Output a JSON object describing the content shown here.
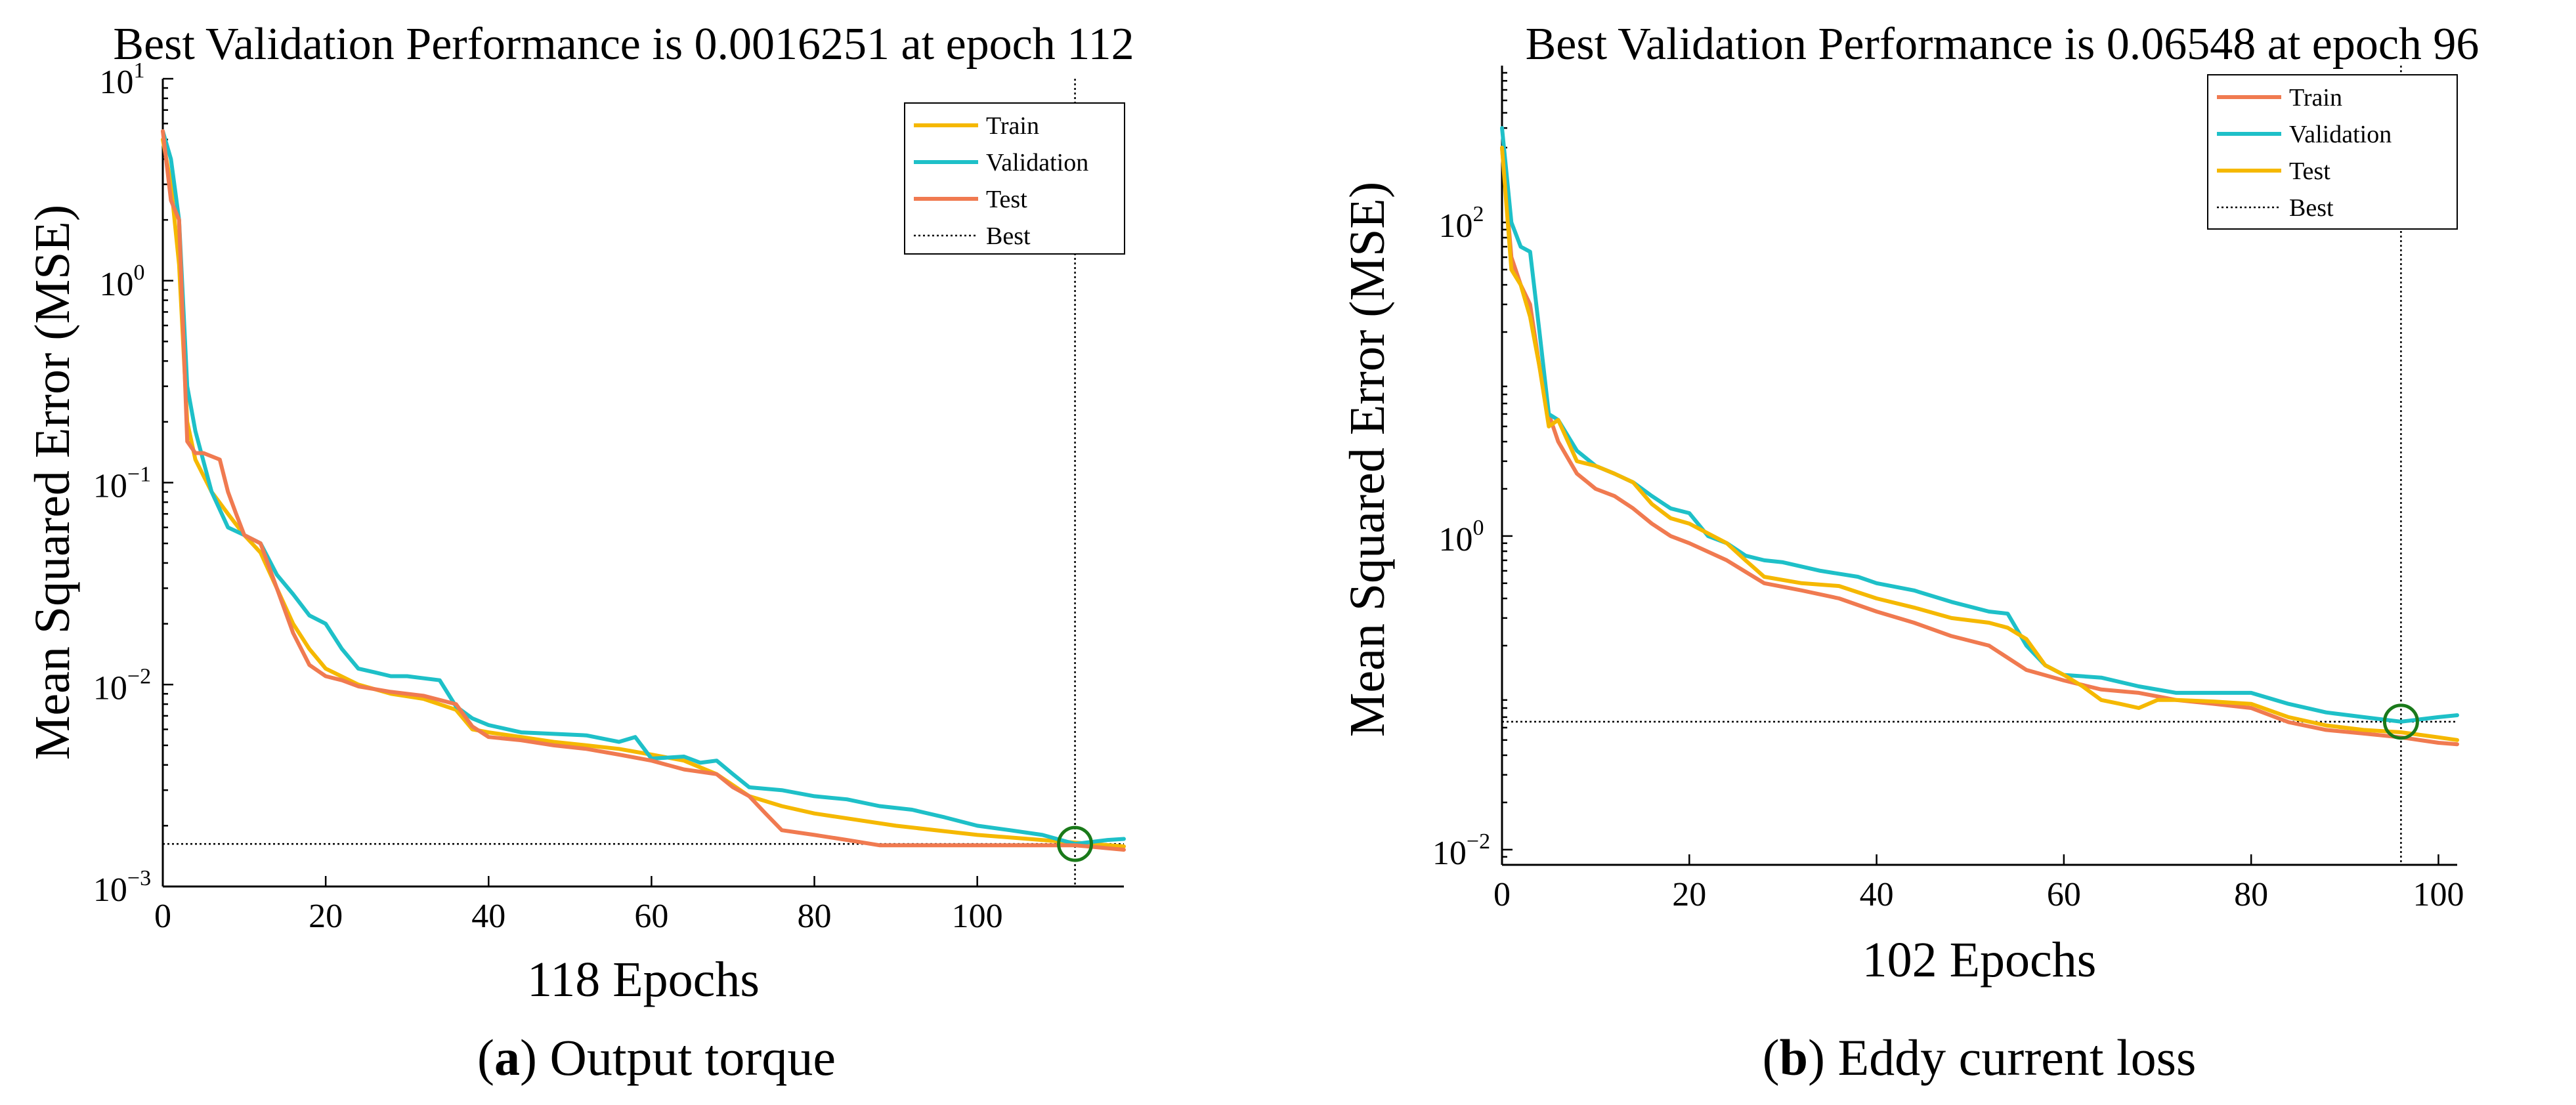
{
  "chart_data": [
    {
      "type": "line",
      "title": "Best Validation Performance is 0.0016251 at epoch 112",
      "xlabel": "118 Epochs",
      "ylabel": "Mean Squared Error  (MSE)",
      "caption_letter": "a",
      "caption_text": "Output torque",
      "xlim": [
        0,
        118
      ],
      "ylim": [
        0.001,
        10
      ],
      "yscale": "log",
      "grid": false,
      "legend_position": "top-right",
      "xticks": [
        0,
        20,
        40,
        60,
        80,
        100
      ],
      "xtick_labels": [
        "0",
        "20",
        "40",
        "60",
        "80",
        "100"
      ],
      "yticks": [
        0.001,
        0.01,
        0.1,
        1,
        10
      ],
      "ytick_base": [
        "10",
        "10",
        "10",
        "10",
        "10"
      ],
      "ytick_exp": [
        "−3",
        "−2",
        "−1",
        "0",
        "1"
      ],
      "best": {
        "label": "Best",
        "epoch": 112,
        "value": 0.0016251,
        "color": "#1a7a1a"
      },
      "series": [
        {
          "name": "Train",
          "color": "#f5b800",
          "x": [
            0,
            1,
            2,
            3,
            4,
            6,
            8,
            10,
            12,
            14,
            16,
            18,
            20,
            24,
            28,
            32,
            36,
            38,
            40,
            44,
            48,
            52,
            56,
            60,
            64,
            68,
            72,
            76,
            80,
            90,
            100,
            112,
            118
          ],
          "y": [
            5,
            3,
            1.2,
            0.2,
            0.13,
            0.09,
            0.07,
            0.055,
            0.045,
            0.03,
            0.02,
            0.015,
            0.012,
            0.01,
            0.009,
            0.0085,
            0.0075,
            0.006,
            0.0058,
            0.0055,
            0.0052,
            0.005,
            0.0048,
            0.0045,
            0.0042,
            0.0036,
            0.0028,
            0.0025,
            0.0023,
            0.002,
            0.0018,
            0.00165,
            0.00158
          ]
        },
        {
          "name": "Validation",
          "color": "#1ec0c8",
          "x": [
            0,
            1,
            2,
            3,
            4,
            6,
            8,
            10,
            12,
            14,
            16,
            18,
            20,
            22,
            24,
            26,
            28,
            30,
            34,
            36,
            38,
            40,
            44,
            48,
            52,
            56,
            58,
            60,
            64,
            66,
            68,
            70,
            72,
            76,
            80,
            84,
            88,
            92,
            96,
            100,
            104,
            108,
            112,
            116,
            118
          ],
          "y": [
            5.5,
            4,
            2,
            0.3,
            0.18,
            0.09,
            0.06,
            0.055,
            0.05,
            0.035,
            0.028,
            0.022,
            0.02,
            0.015,
            0.012,
            0.0115,
            0.011,
            0.011,
            0.0105,
            0.0078,
            0.0068,
            0.0063,
            0.0058,
            0.0057,
            0.0056,
            0.0052,
            0.0055,
            0.0043,
            0.0044,
            0.0041,
            0.0042,
            0.0036,
            0.0031,
            0.003,
            0.0028,
            0.0027,
            0.0025,
            0.0024,
            0.0022,
            0.002,
            0.0019,
            0.0018,
            0.0016251,
            0.0017,
            0.00172
          ]
        },
        {
          "name": "Test",
          "color": "#f07a50",
          "x": [
            0,
            1,
            2,
            3,
            4,
            5,
            7,
            8,
            9,
            10,
            12,
            14,
            16,
            18,
            20,
            22,
            24,
            28,
            32,
            36,
            38,
            40,
            44,
            48,
            52,
            56,
            60,
            64,
            66,
            68,
            70,
            72,
            74,
            76,
            80,
            84,
            88,
            92,
            96,
            100,
            104,
            108,
            112,
            118
          ],
          "y": [
            5.5,
            2.5,
            2,
            0.16,
            0.14,
            0.14,
            0.13,
            0.09,
            0.07,
            0.055,
            0.05,
            0.03,
            0.018,
            0.0125,
            0.011,
            0.0105,
            0.0098,
            0.0092,
            0.0088,
            0.008,
            0.0062,
            0.0055,
            0.0053,
            0.005,
            0.0048,
            0.0045,
            0.0042,
            0.0038,
            0.0037,
            0.0036,
            0.0031,
            0.0028,
            0.0023,
            0.0019,
            0.0018,
            0.0017,
            0.0016,
            0.0016,
            0.0016,
            0.0016,
            0.0016,
            0.0016,
            0.0016,
            0.00152
          ]
        }
      ]
    },
    {
      "type": "line",
      "title": "Best Validation Performance is 0.06548 at epoch 96",
      "xlabel": "102 Epochs",
      "ylabel": "Mean Squared Error  (MSE)",
      "caption_letter": "b",
      "caption_text": "Eddy current loss",
      "xlim": [
        0,
        102
      ],
      "ylim": [
        0.008,
        1000
      ],
      "yscale": "log",
      "grid": false,
      "legend_position": "top-right",
      "xticks": [
        0,
        20,
        40,
        60,
        80,
        100
      ],
      "xtick_labels": [
        "0",
        "20",
        "40",
        "60",
        "80",
        "100"
      ],
      "yticks": [
        0.01,
        1,
        100
      ],
      "ytick_base": [
        "10",
        "10",
        "10"
      ],
      "ytick_exp": [
        "−2",
        "0",
        "2"
      ],
      "best": {
        "label": "Best",
        "epoch": 96,
        "value": 0.06548,
        "color": "#1a7a1a"
      },
      "series": [
        {
          "name": "Train",
          "color": "#f07a50",
          "x": [
            0,
            1,
            2,
            3,
            4,
            5,
            6,
            8,
            10,
            12,
            14,
            16,
            18,
            20,
            24,
            28,
            32,
            36,
            40,
            44,
            48,
            52,
            56,
            60,
            64,
            68,
            72,
            76,
            80,
            84,
            88,
            92,
            96,
            100,
            102
          ],
          "y": [
            300,
            60,
            40,
            30,
            12,
            6,
            4,
            2.5,
            2,
            1.8,
            1.5,
            1.2,
            1.0,
            0.9,
            0.7,
            0.5,
            0.45,
            0.4,
            0.33,
            0.28,
            0.23,
            0.2,
            0.14,
            0.12,
            0.105,
            0.1,
            0.09,
            0.085,
            0.08,
            0.065,
            0.058,
            0.055,
            0.052,
            0.048,
            0.047
          ]
        },
        {
          "name": "Validation",
          "color": "#1ec0c8",
          "x": [
            0,
            1,
            2,
            3,
            4,
            5,
            6,
            8,
            10,
            12,
            14,
            16,
            18,
            20,
            22,
            24,
            26,
            28,
            30,
            34,
            38,
            40,
            44,
            48,
            52,
            54,
            56,
            58,
            60,
            64,
            68,
            72,
            76,
            80,
            84,
            88,
            92,
            96,
            100,
            102
          ],
          "y": [
            400,
            100,
            70,
            65,
            20,
            6,
            5.5,
            3.5,
            2.8,
            2.5,
            2.2,
            1.8,
            1.5,
            1.4,
            1.0,
            0.9,
            0.75,
            0.7,
            0.68,
            0.6,
            0.55,
            0.5,
            0.45,
            0.38,
            0.33,
            0.32,
            0.2,
            0.15,
            0.13,
            0.125,
            0.11,
            0.1,
            0.1,
            0.1,
            0.085,
            0.075,
            0.07,
            0.06548,
            0.07,
            0.072
          ]
        },
        {
          "name": "Test",
          "color": "#f5b800",
          "x": [
            0,
            1,
            2,
            3,
            4,
            5,
            6,
            8,
            10,
            12,
            14,
            16,
            18,
            20,
            24,
            26,
            28,
            32,
            36,
            40,
            44,
            48,
            52,
            54,
            56,
            58,
            60,
            62,
            64,
            66,
            68,
            70,
            72,
            76,
            80,
            84,
            88,
            92,
            96,
            100,
            102
          ],
          "y": [
            300,
            50,
            40,
            25,
            12,
            5,
            5.5,
            3,
            2.8,
            2.5,
            2.2,
            1.6,
            1.3,
            1.2,
            0.9,
            0.7,
            0.55,
            0.5,
            0.48,
            0.4,
            0.35,
            0.3,
            0.28,
            0.26,
            0.22,
            0.15,
            0.13,
            0.11,
            0.09,
            0.085,
            0.08,
            0.09,
            0.09,
            0.088,
            0.085,
            0.07,
            0.062,
            0.058,
            0.056,
            0.052,
            0.05
          ]
        }
      ]
    }
  ]
}
